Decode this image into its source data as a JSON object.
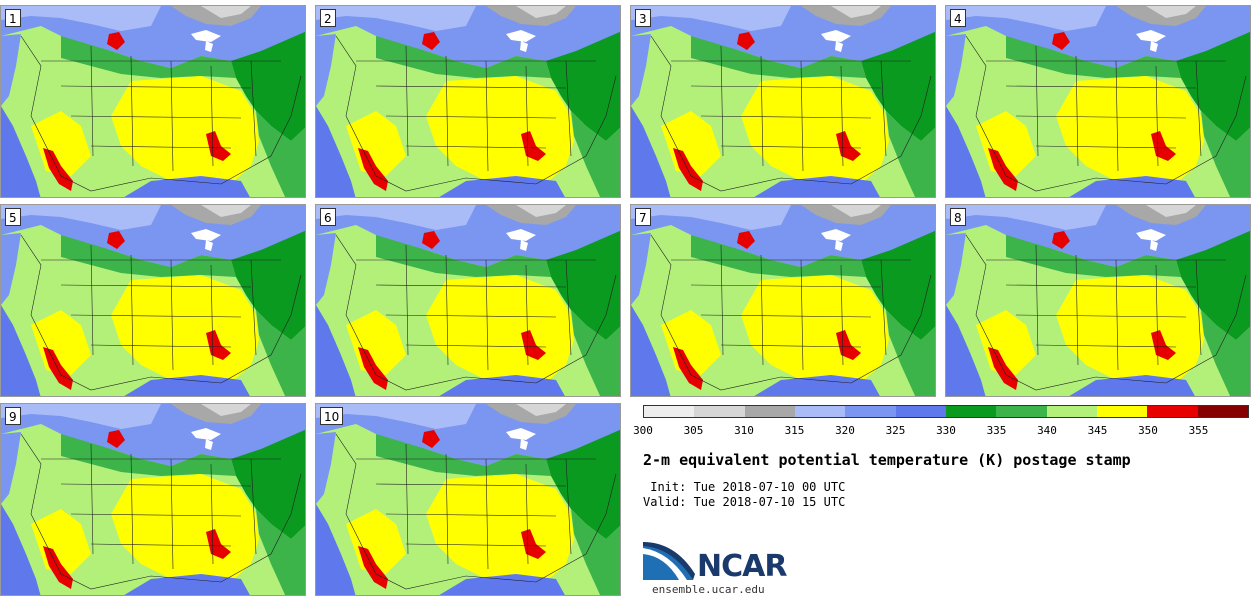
{
  "panels": [
    {
      "label": "1"
    },
    {
      "label": "2"
    },
    {
      "label": "3"
    },
    {
      "label": "4"
    },
    {
      "label": "5"
    },
    {
      "label": "6"
    },
    {
      "label": "7"
    },
    {
      "label": "8"
    },
    {
      "label": "9"
    },
    {
      "label": "10"
    }
  ],
  "colorbar": {
    "colors": [
      "#eeeeee",
      "#d6d6d6",
      "#a8a8a8",
      "#aabcf8",
      "#7a96f0",
      "#5f78ec",
      "#0a9a20",
      "#3cb44a",
      "#b2f07a",
      "#ffff00",
      "#e60000",
      "#870000"
    ],
    "ticks": [
      "300",
      "305",
      "310",
      "315",
      "320",
      "325",
      "330",
      "335",
      "340",
      "345",
      "350",
      "355"
    ]
  },
  "title": "2-m equivalent potential temperature (K) postage stamp",
  "init": " Init: Tue 2018-07-10 00 UTC",
  "valid": "Valid: Tue 2018-07-10 15 UTC",
  "logo": {
    "text": "NCAR"
  },
  "site": "ensemble.ucar.edu"
}
